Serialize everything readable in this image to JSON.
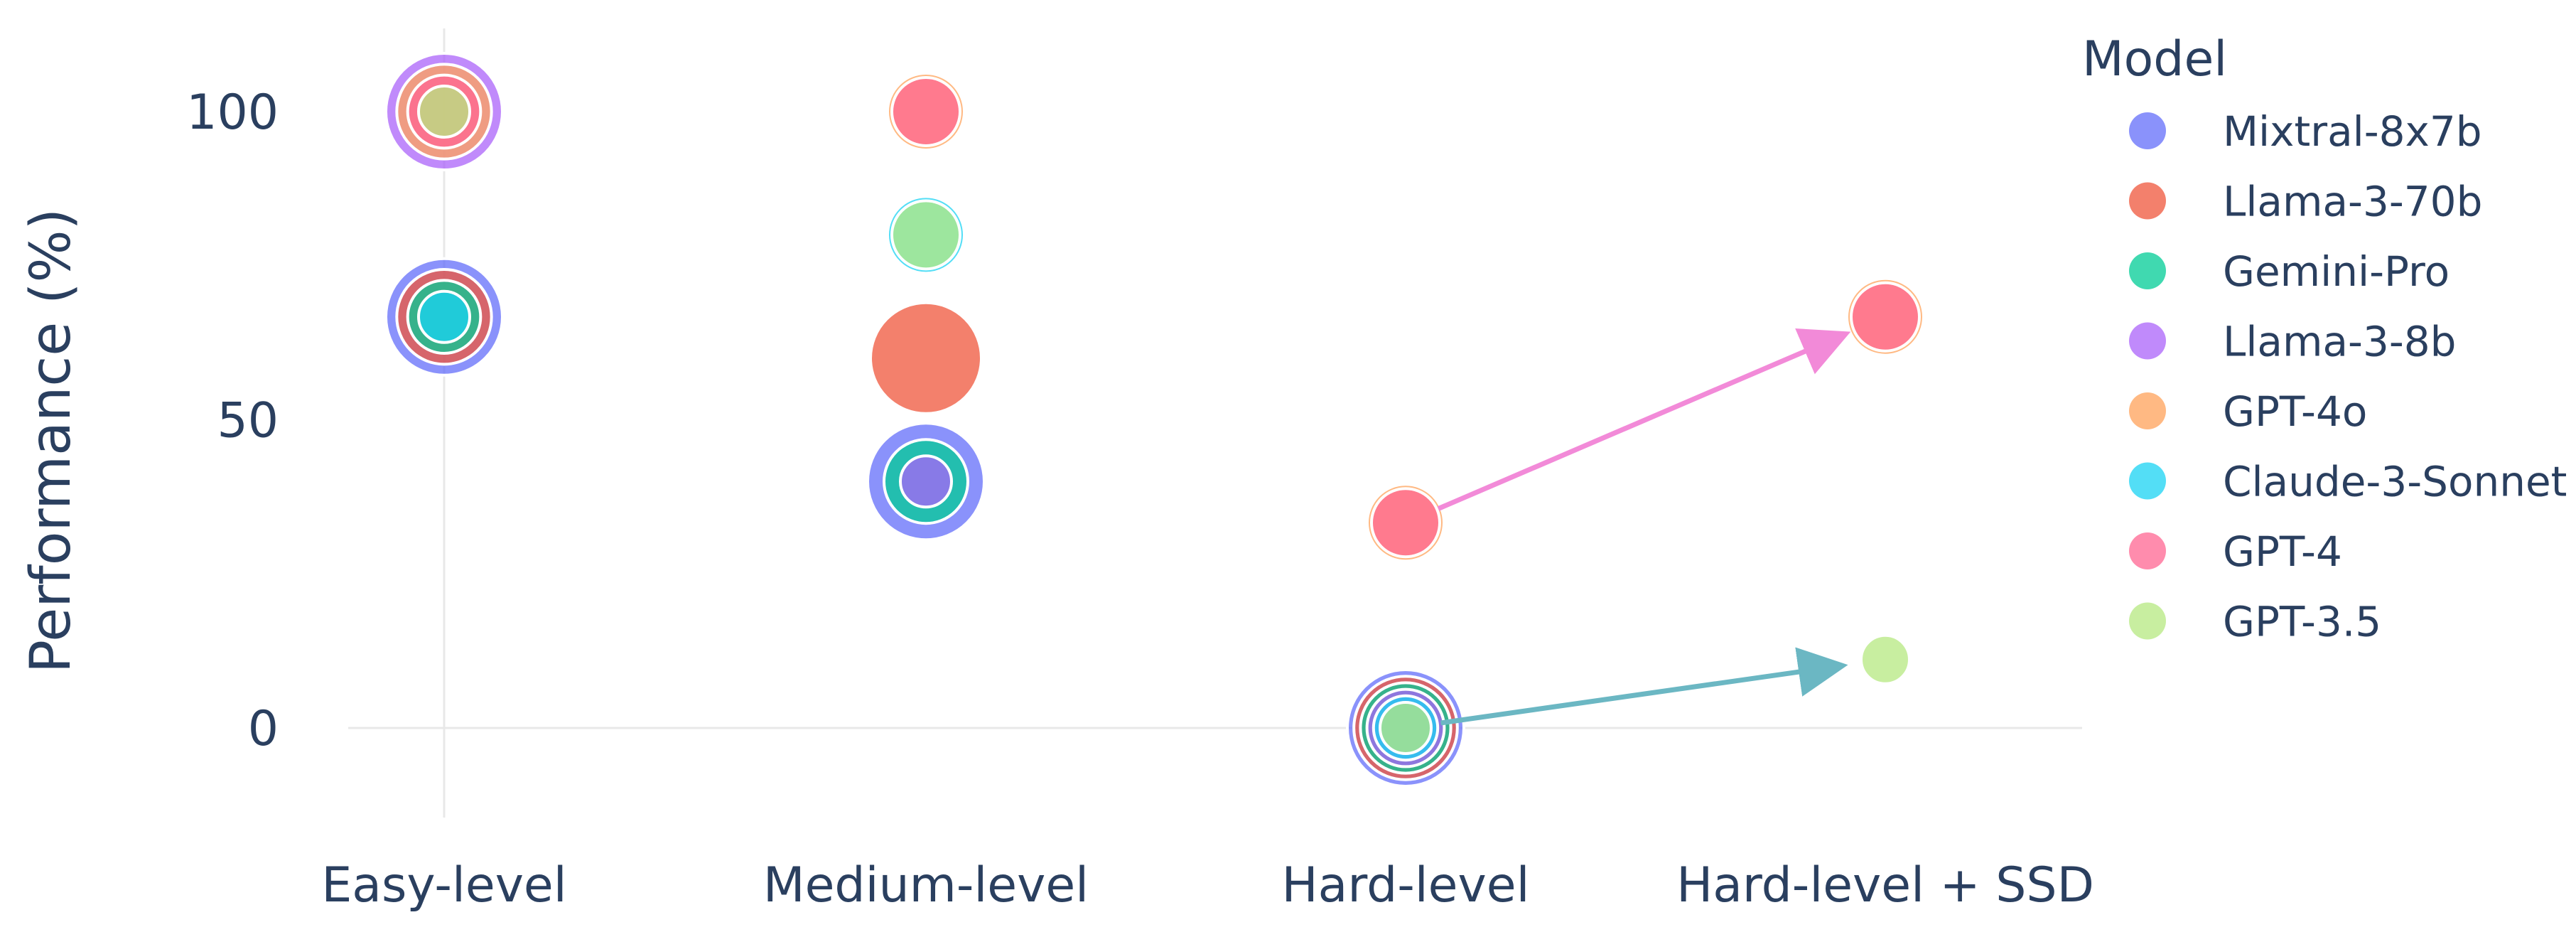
{
  "chart_data": {
    "type": "scatter",
    "title": "",
    "xlabel": "",
    "ylabel": "Performance (%)",
    "categories": [
      "Easy-level",
      "Medium-level",
      "Hard-level",
      "Hard-level + SSD"
    ],
    "ylim": [
      -15,
      115
    ],
    "y_ticks": [
      "0",
      "50",
      "100"
    ],
    "grid": true,
    "legend_title": "Model",
    "legend_position": "right",
    "series": [
      {
        "name": "Mixtral-8x7b",
        "color": "#636EFA",
        "points": [
          {
            "x": "Easy-level",
            "y": 66.7
          },
          {
            "x": "Medium-level",
            "y": 40
          },
          {
            "x": "Hard-level",
            "y": 0
          }
        ]
      },
      {
        "name": "Llama-3-70b",
        "color": "#EF553B",
        "points": [
          {
            "x": "Easy-level",
            "y": 66.7
          },
          {
            "x": "Medium-level",
            "y": 60
          },
          {
            "x": "Hard-level",
            "y": 0
          }
        ]
      },
      {
        "name": "Gemini-Pro",
        "color": "#00CC96",
        "points": [
          {
            "x": "Easy-level",
            "y": 66.7
          },
          {
            "x": "Medium-level",
            "y": 40
          },
          {
            "x": "Hard-level",
            "y": 0
          }
        ]
      },
      {
        "name": "Llama-3-8b",
        "color": "#AB63FA",
        "points": [
          {
            "x": "Easy-level",
            "y": 100
          },
          {
            "x": "Medium-level",
            "y": 40
          },
          {
            "x": "Hard-level",
            "y": 0
          }
        ]
      },
      {
        "name": "GPT-4o",
        "color": "#FFA15A",
        "points": [
          {
            "x": "Easy-level",
            "y": 100
          },
          {
            "x": "Medium-level",
            "y": 100
          },
          {
            "x": "Hard-level",
            "y": 33.3
          },
          {
            "x": "Hard-level + SSD",
            "y": 66.7
          }
        ]
      },
      {
        "name": "Claude-3-Sonnet",
        "color": "#19D3F3",
        "points": [
          {
            "x": "Easy-level",
            "y": 66.7
          },
          {
            "x": "Medium-level",
            "y": 80
          },
          {
            "x": "Hard-level",
            "y": 0
          }
        ]
      },
      {
        "name": "GPT-4",
        "color": "#FF6692",
        "points": [
          {
            "x": "Easy-level",
            "y": 100
          },
          {
            "x": "Medium-level",
            "y": 100
          },
          {
            "x": "Hard-level",
            "y": 33.3
          },
          {
            "x": "Hard-level + SSD",
            "y": 66.7
          }
        ]
      },
      {
        "name": "GPT-3.5",
        "color": "#B6E880",
        "points": [
          {
            "x": "Easy-level",
            "y": 100
          },
          {
            "x": "Medium-level",
            "y": 80
          },
          {
            "x": "Hard-level",
            "y": 0
          },
          {
            "x": "Hard-level + SSD",
            "y": 11.1
          }
        ]
      }
    ],
    "annotations": [
      {
        "type": "arrow",
        "from": {
          "x": "Hard-level",
          "y": 33.3
        },
        "to": {
          "x": "Hard-level + SSD",
          "y": 66.7
        },
        "color": "#F28AD8"
      },
      {
        "type": "arrow",
        "from": {
          "x": "Hard-level",
          "y": 0
        },
        "to": {
          "x": "Hard-level + SSD",
          "y": 11.1
        },
        "color": "#6BB7C3"
      }
    ]
  }
}
